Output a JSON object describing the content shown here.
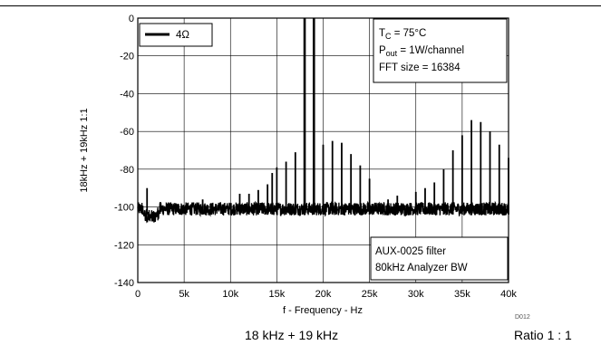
{
  "chart_data": {
    "type": "line",
    "xlabel": "f - Frequency - Hz",
    "ylabel": "18kHz + 19kHz 1:1",
    "xlim": [
      0,
      40000
    ],
    "ylim": [
      -140,
      0
    ],
    "x_ticks": [
      0,
      5000,
      10000,
      15000,
      20000,
      25000,
      30000,
      35000,
      40000
    ],
    "x_tick_labels": [
      "0",
      "5k",
      "10k",
      "15k",
      "20k",
      "25k",
      "30k",
      "35k",
      "40k"
    ],
    "y_ticks": [
      0,
      -20,
      -40,
      -60,
      -80,
      -100,
      -120,
      -140
    ],
    "y_tick_labels": [
      "0",
      "-20",
      "-40",
      "-60",
      "-80",
      "-100",
      "-120",
      "-140"
    ],
    "grid": true,
    "legend": {
      "position": "top-left",
      "label": "4Ω"
    },
    "series": [
      {
        "name": "4Ω",
        "noise_floor_db": -101,
        "peaks": [
          {
            "x": 1000,
            "y": -90
          },
          {
            "x": 7000,
            "y": -96
          },
          {
            "x": 11000,
            "y": -93
          },
          {
            "x": 12000,
            "y": -93
          },
          {
            "x": 13000,
            "y": -91
          },
          {
            "x": 14000,
            "y": -88
          },
          {
            "x": 14500,
            "y": -82
          },
          {
            "x": 15000,
            "y": -79
          },
          {
            "x": 16000,
            "y": -76
          },
          {
            "x": 17000,
            "y": -71
          },
          {
            "x": 18000,
            "y": 0
          },
          {
            "x": 19000,
            "y": 0
          },
          {
            "x": 20000,
            "y": -67
          },
          {
            "x": 21000,
            "y": -65
          },
          {
            "x": 22000,
            "y": -66
          },
          {
            "x": 23000,
            "y": -72
          },
          {
            "x": 24000,
            "y": -78
          },
          {
            "x": 25000,
            "y": -85
          },
          {
            "x": 27000,
            "y": -96
          },
          {
            "x": 28000,
            "y": -94
          },
          {
            "x": 30000,
            "y": -92
          },
          {
            "x": 31000,
            "y": -90
          },
          {
            "x": 32000,
            "y": -87
          },
          {
            "x": 33000,
            "y": -80
          },
          {
            "x": 34000,
            "y": -70
          },
          {
            "x": 35000,
            "y": -62
          },
          {
            "x": 36000,
            "y": -54
          },
          {
            "x": 37000,
            "y": -55
          },
          {
            "x": 38000,
            "y": -60
          },
          {
            "x": 39000,
            "y": -67
          },
          {
            "x": 40000,
            "y": -74
          }
        ]
      }
    ],
    "annotations": {
      "conditions": {
        "line1_main": "T",
        "line1_sub": "C",
        "line1_rest": " = 75°C",
        "line2_main": "P",
        "line2_sub": "out",
        "line2_rest": " = 1W/channel",
        "line3": "FFT size = 16384"
      },
      "filter": {
        "line1": "AUX-0025 filter",
        "line2": "80kHz Analyzer BW"
      },
      "figure_id": "D012"
    }
  },
  "captions": {
    "left": "18 kHz + 19 kHz",
    "right": "Ratio 1 : 1"
  }
}
